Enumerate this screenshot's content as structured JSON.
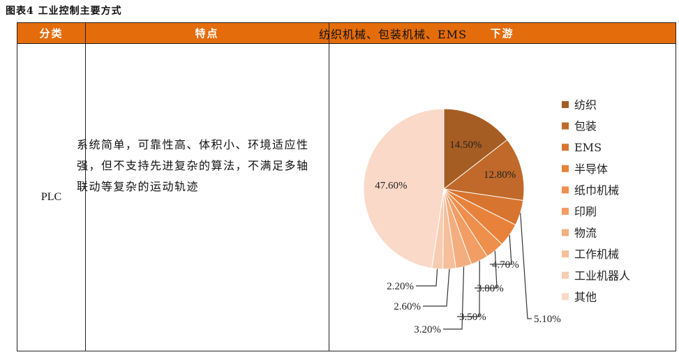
{
  "figure_title": "图表4   工业控制主要方式",
  "table": {
    "headers": [
      "分类",
      "特点",
      "下游"
    ],
    "row": {
      "category": "PLC",
      "features": "系统简单，可靠性高、体积小、环境适应性强，但不支持先进复杂的算法，不满足多轴联动等复杂的运动轨迹",
      "downstream": "纺织机械、包装机械、EMS"
    }
  },
  "chart_data": {
    "type": "pie",
    "categories": [
      "纺织",
      "包装",
      "EMS",
      "半导体",
      "纸巾机械",
      "印刷",
      "物流",
      "工作机械",
      "工业机器人",
      "其他"
    ],
    "values": [
      14.5,
      12.8,
      5.1,
      4.7,
      3.8,
      3.5,
      3.2,
      2.6,
      2.2,
      47.6
    ],
    "labels": [
      "14.50%",
      "12.80%",
      "5.10%",
      "4.70%",
      "3.80%",
      "3.50%",
      "3.20%",
      "2.60%",
      "2.20%",
      "47.60%"
    ],
    "colors": [
      "#a65d24",
      "#c0692a",
      "#d77530",
      "#e8823a",
      "#ee8f4c",
      "#f19d63",
      "#f3ae7f",
      "#f6bf9a",
      "#f8ccb1",
      "#fad9c8"
    ],
    "legend_position": "right"
  }
}
